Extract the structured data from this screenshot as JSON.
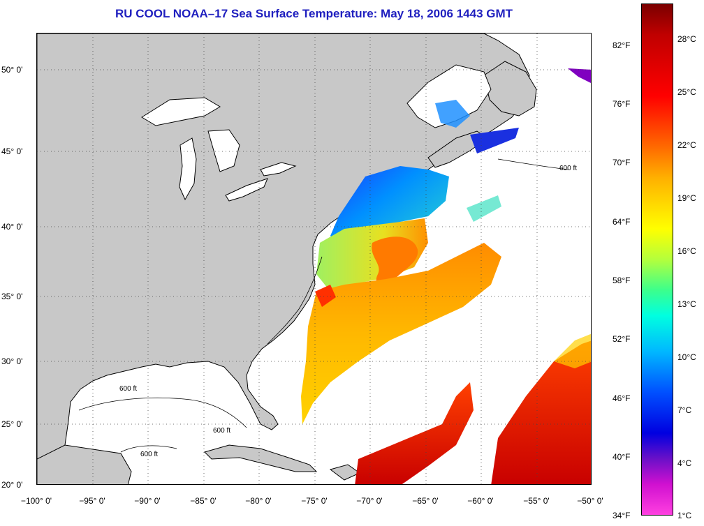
{
  "title": "RU COOL  NOAA–17  Sea Surface Temperature:  May 18, 2006 1443 GMT",
  "map": {
    "lat_labels": [
      "50° 0'",
      "45° 0'",
      "40° 0'",
      "35° 0'",
      "30° 0'",
      "25° 0'",
      "20° 0'"
    ],
    "lon_labels": [
      "−100° 0'",
      "−95° 0'",
      "−90° 0'",
      "−85° 0'",
      "−80° 0'",
      "−75° 0'",
      "−70° 0'",
      "−65° 0'",
      "−60° 0'",
      "−55° 0'",
      "−50° 0'"
    ],
    "contour_label": "600 ft",
    "colors": {
      "land": "#c8c8c8",
      "water": "#ffffff",
      "title": "#1f1fbf"
    }
  },
  "colorbar": {
    "fahrenheit": [
      "82°F",
      "76°F",
      "70°F",
      "64°F",
      "58°F",
      "52°F",
      "46°F",
      "40°F",
      "34°F"
    ],
    "celsius": [
      "28°C",
      "25°C",
      "22°C",
      "19°C",
      "16°C",
      "13°C",
      "10°C",
      "7°C",
      "4°C",
      "1°C"
    ]
  }
}
